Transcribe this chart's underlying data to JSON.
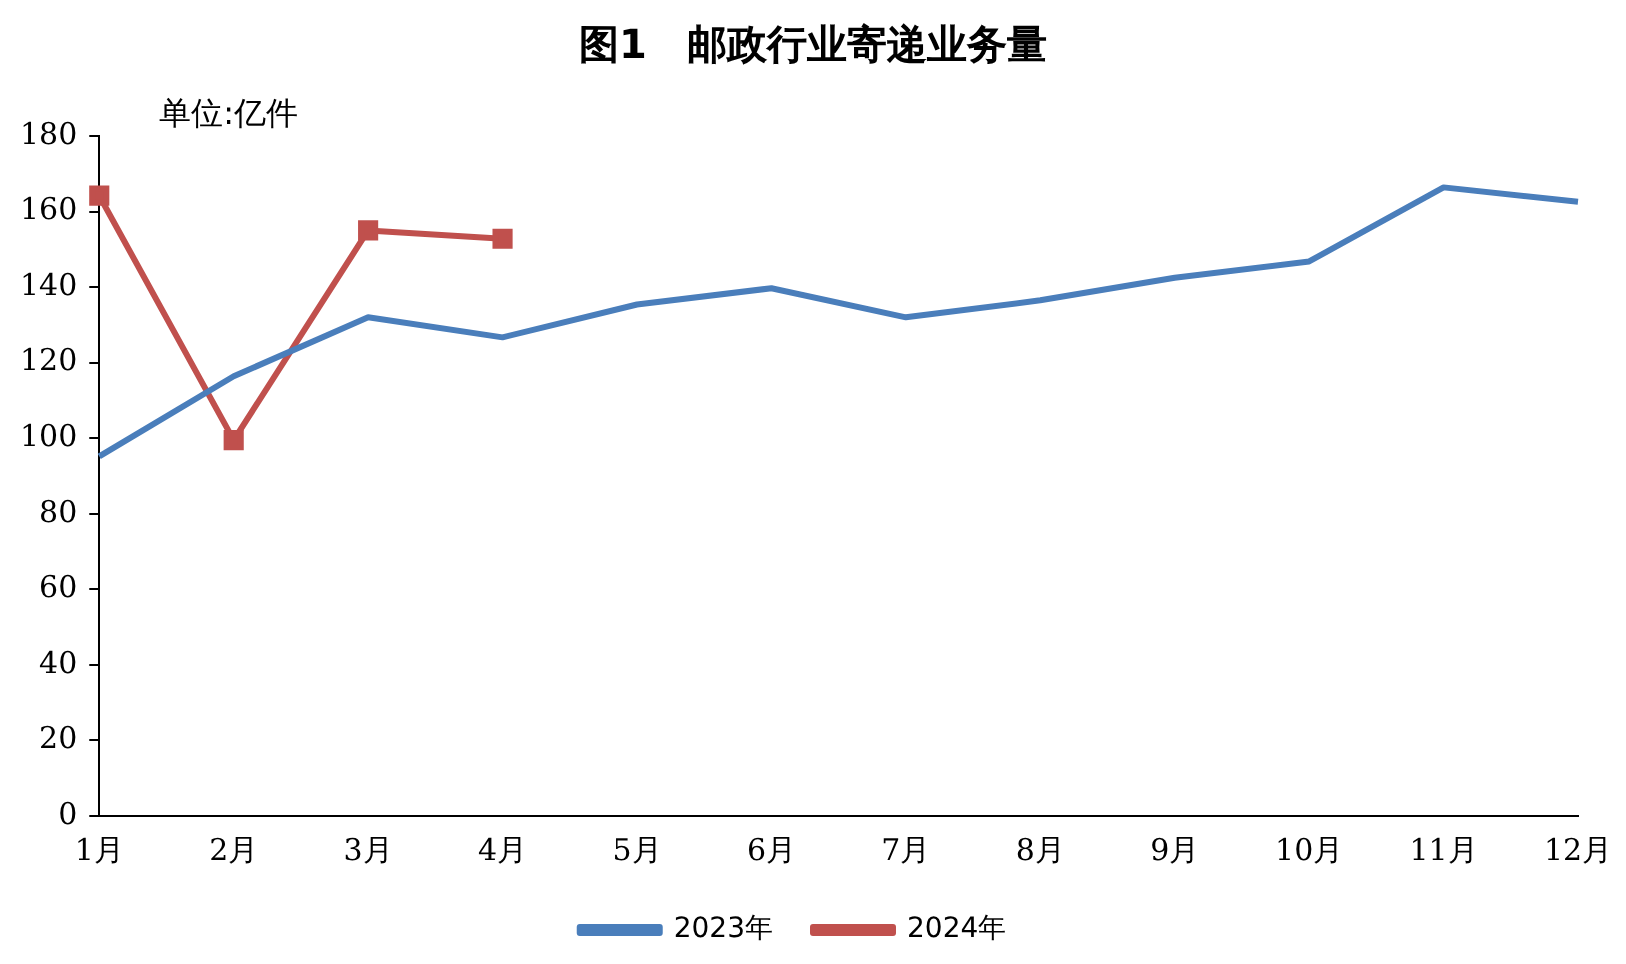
{
  "chart_data": {
    "type": "line",
    "title": "图1　邮政行业寄递业务量",
    "annotations": [
      "单位:亿件"
    ],
    "categories": [
      "1月",
      "2月",
      "3月",
      "4月",
      "5月",
      "6月",
      "7月",
      "8月",
      "9月",
      "10月",
      "11月",
      "12月"
    ],
    "series": [
      {
        "name": "2023年",
        "color": "#4a7ebb",
        "marker": "none",
        "values": [
          95.2,
          116.4,
          132,
          126.7,
          135.4,
          139.7,
          132,
          136.5,
          142.5,
          146.8,
          166.4,
          162.6
        ]
      },
      {
        "name": "2024年",
        "color": "#c0504d",
        "marker": "square",
        "values": [
          164.2,
          99.5,
          155,
          152.8,
          null,
          null,
          null,
          null,
          null,
          null,
          null,
          null
        ]
      }
    ],
    "ylim": [
      0,
      180
    ],
    "yticks": [
      0,
      20,
      40,
      60,
      80,
      100,
      120,
      140,
      160,
      180
    ],
    "grid": false,
    "legend": "bottom"
  }
}
